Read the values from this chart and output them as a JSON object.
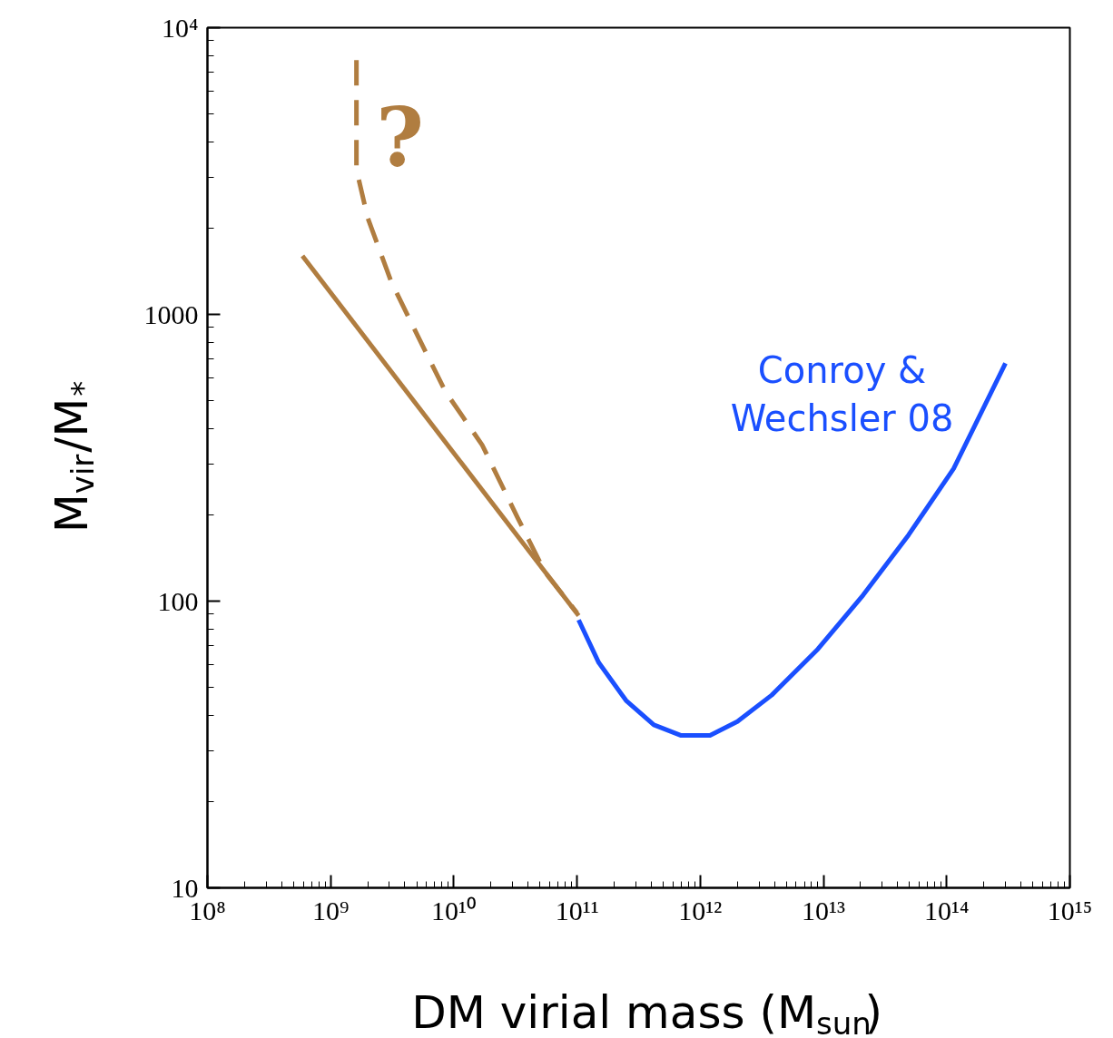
{
  "chart_data": {
    "type": "line",
    "log": "xy",
    "xlabel": "DM virial mass (M$_{sun}$)",
    "ylabel": "M$_{vir}$/M$_{*}$",
    "xlim": [
      100000000.0,
      1000000000000000.0
    ],
    "ylim": [
      10,
      10000
    ],
    "xticks": [
      {
        "value": 100000000.0,
        "label": "10⁸"
      },
      {
        "value": 1000000000.0,
        "label": "10⁹"
      },
      {
        "value": 10000000000.0,
        "label": "10¹⁰"
      },
      {
        "value": 100000000000.0,
        "label": "10¹¹"
      },
      {
        "value": 1000000000000.0,
        "label": "10¹²"
      },
      {
        "value": 10000000000000.0,
        "label": "10¹³"
      },
      {
        "value": 100000000000000.0,
        "label": "10¹⁴"
      },
      {
        "value": 1000000000000000.0,
        "label": "10¹⁵"
      }
    ],
    "yticks": [
      10,
      100,
      1000,
      {
        "value": 10000,
        "label": "10⁴"
      }
    ],
    "series": [
      {
        "color": "#b07d40",
        "line_style": "solid",
        "x": [
          590000000.0,
          103000000000.0
        ],
        "values": [
          1600,
          89
        ]
      },
      {
        "color": "#b07d40",
        "line_style": "dashed",
        "x": [
          1620000000.0,
          1620000000.0,
          2000000000.0,
          3100000000.0,
          5100000000.0,
          8500000000.0,
          17000000000.0,
          33000000000.0,
          55000000000.0,
          100000000000.0
        ],
        "values": [
          7700,
          3200,
          2170,
          1300,
          840,
          540,
          350,
          195,
          126,
          91
        ]
      },
      {
        "name": "Conroy & Wechsler 08",
        "color": "#1a4fff",
        "line_style": "solid",
        "x": [
          103000000000.0,
          150000000000.0,
          250000000000.0,
          420000000000.0,
          700000000000.0,
          1200000000000.0,
          2000000000000.0,
          3800000000000.0,
          9000000000000.0,
          21000000000000.0,
          49000000000000.0,
          114000000000000.0,
          300000000000000.0
        ],
        "values": [
          86,
          61,
          45,
          37,
          34,
          34,
          38,
          47,
          68,
          105,
          170,
          290,
          675
        ]
      }
    ],
    "annotations": [
      "?"
    ]
  }
}
